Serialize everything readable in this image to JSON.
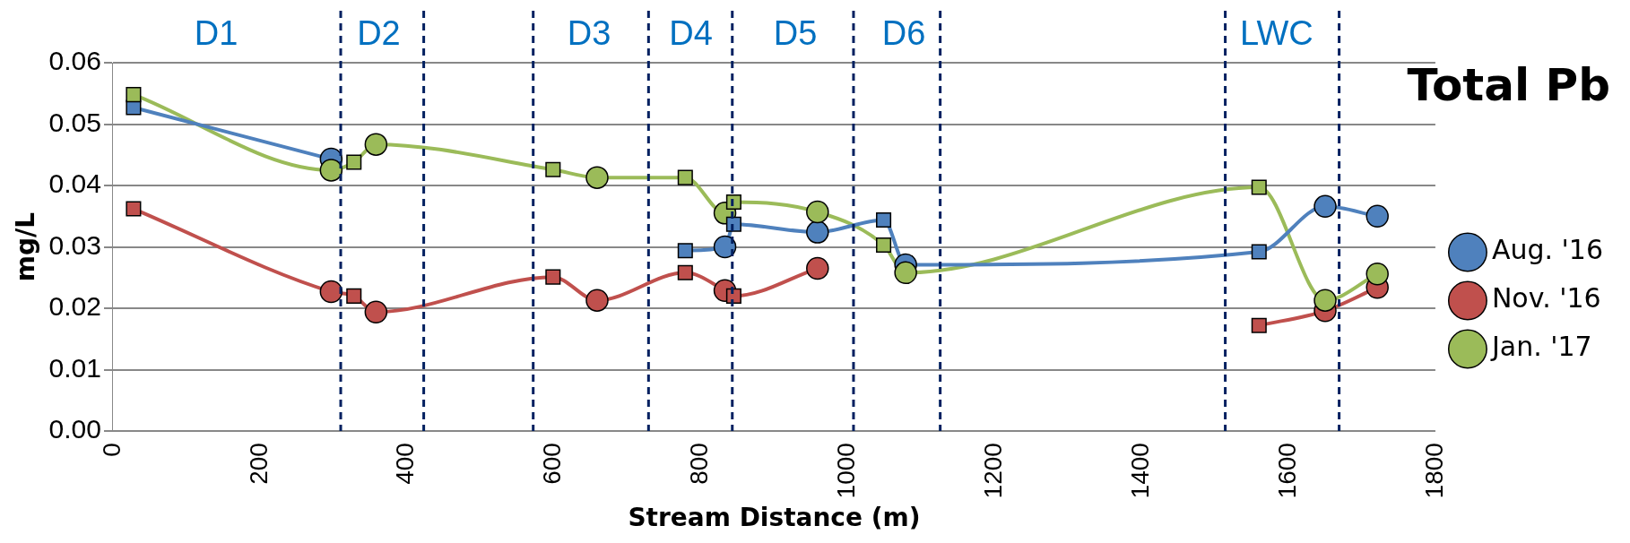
{
  "chart_data": {
    "type": "line",
    "title": "Total Pb",
    "xlabel": "Stream Distance (m)",
    "ylabel": "mg/L",
    "xlim": [
      0,
      1800
    ],
    "xticks": [
      0,
      200,
      400,
      600,
      800,
      1000,
      1200,
      1400,
      1600,
      1800
    ],
    "ylim": [
      0,
      0.06
    ],
    "yticks": [
      {
        "value": 0,
        "label": "0.00"
      },
      {
        "value": 0.01,
        "label": "0.01"
      },
      {
        "value": 0.02,
        "label": "0.02"
      },
      {
        "value": 0.03,
        "label": "0.03"
      },
      {
        "value": 0.04,
        "label": "0.04"
      },
      {
        "value": 0.05,
        "label": "0.05"
      },
      {
        "value": 0.06,
        "label": "0.06"
      }
    ],
    "grid": "y",
    "legend": "right",
    "line_style": "solid",
    "marker": "circle",
    "series": [
      {
        "name": "Aug. '16",
        "color": "#4f81bd",
        "marker": "none",
        "x": [
          28,
          297,
          500,
          779,
          833,
          845,
          959,
          1049,
          1079,
          1560,
          1650,
          1721
        ],
        "values": [
          0.0527,
          0.0443,
          null,
          0.0294,
          0.03,
          0.0337,
          0.0324,
          0.0344,
          0.0271,
          0.0292,
          0.0366,
          0.035
        ]
      },
      {
        "name": "Nov. '16",
        "color": "#c0504d",
        "marker": "none",
        "x": [
          28,
          297,
          328,
          358,
          599,
          659,
          779,
          833,
          845,
          959,
          1200,
          1560,
          1650,
          1721
        ],
        "values": [
          0.0362,
          0.0227,
          0.022,
          0.0194,
          0.0251,
          0.0213,
          0.0258,
          0.0229,
          0.022,
          0.0265,
          null,
          0.0172,
          0.0196,
          0.0234
        ]
      },
      {
        "name": "Jan. '17",
        "color": "#9bbb59",
        "marker": "none",
        "x": [
          28,
          297,
          328,
          358,
          599,
          659,
          779,
          833,
          845,
          959,
          1049,
          1079,
          1560,
          1650,
          1721
        ],
        "values": [
          0.0548,
          0.0425,
          0.0438,
          0.0467,
          0.0426,
          0.0413,
          0.0413,
          0.0355,
          0.0373,
          0.0357,
          0.0303,
          0.0258,
          0.0397,
          0.0213,
          0.0256
        ]
      },
      {
        "type": "scatter",
        "color": "#9bbb59",
        "marker": "circle",
        "x": [
          297,
          358,
          659,
          833,
          959,
          1079,
          1650,
          1721
        ],
        "values": [
          0.0425,
          0.0467,
          0.0413,
          0.0355,
          0.0357,
          0.0258,
          0.0213,
          0.0256
        ]
      },
      {
        "type": "scatter",
        "color": "#c0504d",
        "marker": "circle",
        "x": [
          297,
          358,
          659,
          833,
          959,
          1650,
          1721
        ],
        "values": [
          0.0227,
          0.0194,
          0.0213,
          0.0229,
          0.0265,
          0.0196,
          0.0234
        ]
      },
      {
        "type": "scatter",
        "color": "#4f81bd",
        "marker": "circle",
        "x": [
          297,
          833,
          959,
          1079,
          1650,
          1721
        ],
        "values": [
          0.0443,
          0.03,
          0.0324,
          0.0271,
          0.0366,
          0.035
        ]
      },
      {
        "type": "scatter",
        "color": "#9bbb59",
        "marker": "square",
        "x": [
          28,
          328,
          599,
          779,
          845,
          1049,
          1560
        ],
        "values": [
          0.0548,
          0.0438,
          0.0426,
          0.0413,
          0.0373,
          0.0303,
          0.0397
        ]
      },
      {
        "type": "scatter",
        "color": "#c0504d",
        "marker": "square",
        "x": [
          28,
          328,
          599,
          779,
          845,
          1560
        ],
        "values": [
          0.0362,
          0.022,
          0.0251,
          0.0258,
          0.022,
          0.0172
        ]
      },
      {
        "type": "scatter",
        "color": "#4f81bd",
        "marker": "square",
        "x": [
          28,
          779,
          845,
          1049,
          1560
        ],
        "values": [
          0.0527,
          0.0294,
          0.0337,
          0.0344,
          0.0292
        ]
      }
    ],
    "ref_lines": [
      {
        "axis": "x",
        "value": 310,
        "color": "#002060",
        "line_style": "dashed"
      },
      {
        "axis": "x",
        "value": 423,
        "color": "#002060",
        "line_style": "dashed"
      },
      {
        "axis": "x",
        "value": 572,
        "color": "#002060",
        "line_style": "dashed"
      },
      {
        "axis": "x",
        "value": 729,
        "color": "#002060",
        "line_style": "dashed"
      },
      {
        "axis": "x",
        "value": 843,
        "color": "#002060",
        "line_style": "dashed"
      },
      {
        "axis": "x",
        "value": 1008,
        "color": "#002060",
        "line_style": "dashed"
      },
      {
        "axis": "x",
        "value": 1126,
        "color": "#002060",
        "line_style": "dashed"
      },
      {
        "axis": "x",
        "value": 1514,
        "color": "#002060",
        "line_style": "dashed"
      },
      {
        "axis": "x",
        "value": 1669,
        "color": "#002060",
        "line_style": "dashed"
      }
    ],
    "annotations": [
      "D1",
      "D2",
      "D3",
      "D4",
      "D5",
      "D6",
      "LWC"
    ]
  }
}
